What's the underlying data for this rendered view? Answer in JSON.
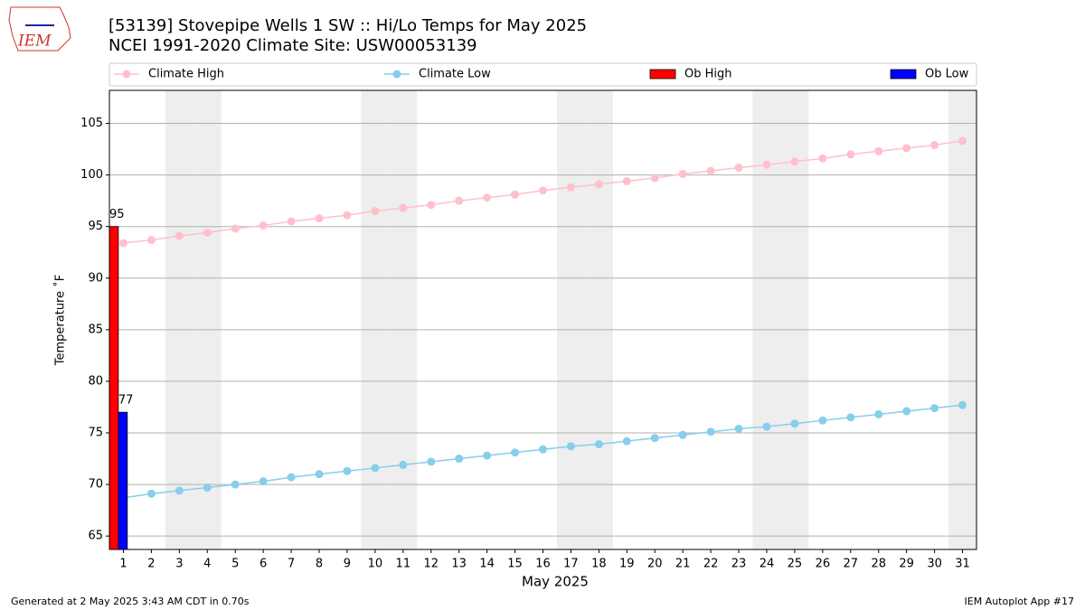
{
  "logo_text": "IEM",
  "footer_left": "Generated at 2 May 2025 3:43 AM CDT in 0.70s",
  "footer_right": "IEM Autoplot App #17",
  "chart_data": {
    "type": "line",
    "title": "[53139] Stovepipe Wells 1 SW :: Hi/Lo Temps for May 2025",
    "subtitle": "NCEI 1991-2020 Climate Site: USW00053139",
    "x_label": "May 2025",
    "y_label": "Temperature ˚F",
    "x": [
      1,
      2,
      3,
      4,
      5,
      6,
      7,
      8,
      9,
      10,
      11,
      12,
      13,
      14,
      15,
      16,
      17,
      18,
      19,
      20,
      21,
      22,
      23,
      24,
      25,
      26,
      27,
      28,
      29,
      30,
      31
    ],
    "xlim": [
      0.5,
      31.5
    ],
    "ylim": [
      63.7,
      108.2
    ],
    "yticks": [
      65,
      70,
      75,
      80,
      85,
      90,
      95,
      100,
      105
    ],
    "grid": true,
    "shaded_days": [
      3,
      4,
      10,
      11,
      17,
      18,
      24,
      25,
      31
    ],
    "shade_color": "#eeeeee",
    "series": [
      {
        "name": "Climate High",
        "kind": "line",
        "color": "#ffc0cb",
        "values": [
          93.4,
          93.7,
          94.1,
          94.4,
          94.8,
          95.1,
          95.5,
          95.8,
          96.1,
          96.5,
          96.8,
          97.1,
          97.5,
          97.8,
          98.1,
          98.5,
          98.8,
          99.1,
          99.4,
          99.7,
          100.1,
          100.4,
          100.7,
          101.0,
          101.3,
          101.6,
          102.0,
          102.3,
          102.6,
          102.9,
          103.3
        ]
      },
      {
        "name": "Climate Low",
        "kind": "line",
        "color": "#87ceeb",
        "values": [
          68.7,
          69.1,
          69.4,
          69.7,
          70.0,
          70.3,
          70.7,
          71.0,
          71.3,
          71.6,
          71.9,
          72.2,
          72.5,
          72.8,
          73.1,
          73.4,
          73.7,
          73.9,
          74.2,
          74.5,
          74.8,
          75.1,
          75.4,
          75.6,
          75.9,
          76.2,
          76.5,
          76.8,
          77.1,
          77.4,
          77.7
        ]
      },
      {
        "name": "Ob High",
        "kind": "bar",
        "color": "#ff0000",
        "values": [
          95,
          null,
          null,
          null,
          null,
          null,
          null,
          null,
          null,
          null,
          null,
          null,
          null,
          null,
          null,
          null,
          null,
          null,
          null,
          null,
          null,
          null,
          null,
          null,
          null,
          null,
          null,
          null,
          null,
          null,
          null
        ]
      },
      {
        "name": "Ob Low",
        "kind": "bar",
        "color": "#0000ff",
        "values": [
          77,
          null,
          null,
          null,
          null,
          null,
          null,
          null,
          null,
          null,
          null,
          null,
          null,
          null,
          null,
          null,
          null,
          null,
          null,
          null,
          null,
          null,
          null,
          null,
          null,
          null,
          null,
          null,
          null,
          null,
          null
        ]
      }
    ]
  }
}
